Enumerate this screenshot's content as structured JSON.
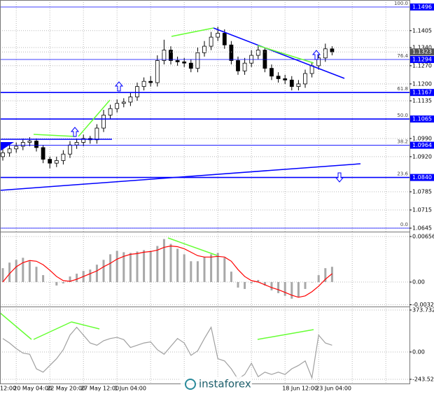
{
  "chart_data": [
    {
      "type": "candlestick",
      "categories": [
        "12:00",
        null,
        "20 May 04:00",
        null,
        null,
        null,
        null,
        "22 May 20:00",
        null,
        null,
        null,
        null,
        "27 May 12:00",
        null,
        null,
        null,
        null,
        "1 Jun 04:00",
        null,
        null,
        null,
        null,
        null,
        null,
        null,
        null,
        null,
        null,
        null,
        null,
        null,
        null,
        null,
        null,
        null,
        null,
        null,
        null,
        null,
        null,
        null,
        null,
        "18 Jun 12:00",
        null,
        null,
        null,
        null,
        "23 Jun 04:00",
        null,
        null
      ],
      "open": [
        1.092,
        1.0935,
        1.095,
        1.096,
        1.0975,
        1.098,
        1.0955,
        1.091,
        1.0895,
        1.0905,
        1.093,
        1.0965,
        1.0975,
        1.099,
        1.0985,
        1.103,
        1.108,
        1.1105,
        1.1125,
        1.113,
        1.115,
        1.119,
        1.121,
        1.1205,
        1.129,
        1.133,
        1.129,
        1.1285,
        1.128,
        1.126,
        1.132,
        1.1345,
        1.138,
        1.1395,
        1.135,
        1.129,
        1.125,
        1.128,
        1.131,
        1.133,
        1.126,
        1.123,
        1.122,
        1.1215,
        1.119,
        1.12,
        1.124,
        1.127,
        1.13,
        1.1335
      ],
      "high": [
        1.095,
        1.0965,
        1.0975,
        1.099,
        1.0995,
        1.099,
        1.0965,
        1.092,
        1.092,
        1.0945,
        1.098,
        1.099,
        1.1005,
        1.1,
        1.1045,
        1.11,
        1.112,
        1.114,
        1.1145,
        1.1165,
        1.1205,
        1.1225,
        1.123,
        1.131,
        1.137,
        1.1345,
        1.1305,
        1.13,
        1.1295,
        1.134,
        1.1365,
        1.14,
        1.142,
        1.141,
        1.1365,
        1.1305,
        1.13,
        1.133,
        1.135,
        1.134,
        1.1275,
        1.1245,
        1.1235,
        1.123,
        1.1215,
        1.1255,
        1.1285,
        1.1315,
        1.1355,
        1.1345
      ],
      "low": [
        1.0905,
        1.092,
        1.0935,
        1.0945,
        1.096,
        1.094,
        1.0895,
        1.0875,
        1.088,
        1.089,
        1.0915,
        1.095,
        1.096,
        1.097,
        1.097,
        1.1015,
        1.1065,
        1.109,
        1.111,
        1.1115,
        1.1135,
        1.1175,
        1.119,
        1.119,
        1.1275,
        1.1275,
        1.127,
        1.1265,
        1.1245,
        1.1245,
        1.1305,
        1.133,
        1.1365,
        1.1335,
        1.1275,
        1.1235,
        1.1235,
        1.1265,
        1.1295,
        1.1245,
        1.1215,
        1.1205,
        1.12,
        1.1175,
        1.1175,
        1.1185,
        1.1225,
        1.1255,
        1.1285,
        1.131
      ],
      "close": [
        1.0935,
        1.095,
        1.096,
        1.0975,
        1.098,
        1.0955,
        1.091,
        1.0895,
        1.0905,
        1.093,
        1.0965,
        1.0975,
        1.099,
        1.0985,
        1.103,
        1.108,
        1.1105,
        1.1125,
        1.113,
        1.115,
        1.119,
        1.121,
        1.1205,
        1.129,
        1.133,
        1.129,
        1.1285,
        1.128,
        1.126,
        1.132,
        1.1345,
        1.138,
        1.1395,
        1.135,
        1.129,
        1.125,
        1.128,
        1.131,
        1.133,
        1.126,
        1.123,
        1.122,
        1.1215,
        1.119,
        1.12,
        1.124,
        1.127,
        1.13,
        1.1335,
        1.1323
      ],
      "ylim": [
        1.0645,
        1.1496
      ],
      "yticks": [
        1.1405,
        {
          "value": 1.134,
          "label": "1.1340"
        },
        {
          "value": 1.127,
          "label": "1.1270"
        },
        {
          "value": 1.12,
          "label": "1.1200"
        },
        1.1135,
        {
          "value": 1.099,
          "label": "1.0990"
        },
        {
          "value": 1.092,
          "label": "1.0920"
        },
        1.0785,
        1.0715,
        1.0645
      ],
      "fib_levels": [
        "100.0",
        "76.4",
        "61.8",
        "50.0",
        "38.2",
        "23.6",
        "0.0"
      ],
      "fib_prices": [
        1.1496,
        1.1294,
        1.1167,
        1.1065,
        1.0964,
        1.084,
        1.0645
      ],
      "fib_price_labels": [
        "1.1496",
        "1.1294",
        "1.1167",
        "1.1065",
        "1.0964",
        "1.0840",
        null
      ],
      "fib_thick": [
        false,
        false,
        true,
        true,
        false,
        true,
        false
      ],
      "fib_color": "#0000ff",
      "last_price": 1.1323,
      "grid": true
    },
    {
      "type": "bar",
      "series": [
        {
          "color": "#a8a8a8",
          "values": [
            0.002,
            0.0028,
            0.0032,
            0.0035,
            0.003,
            0.0022,
            0.001,
            0.0,
            -0.0005,
            -0.0002,
            0.0008,
            0.0012,
            0.0016,
            0.0018,
            0.0025,
            0.0032,
            0.004,
            0.0045,
            0.0043,
            0.0042,
            0.0044,
            0.0046,
            0.0045,
            0.0052,
            0.0062,
            0.0055,
            0.0048,
            0.004,
            0.003,
            0.003,
            0.0036,
            0.004,
            0.0042,
            0.0035,
            0.0015,
            -0.0008,
            -0.001,
            -0.0002,
            0.0003,
            -0.0005,
            -0.0012,
            -0.0016,
            -0.002,
            -0.0024,
            -0.0022,
            -0.001,
            0.0,
            0.001,
            0.002,
            0.0022
          ]
        },
        {
          "color": "#ff0000",
          "type": "line",
          "values": [
            0.0,
            0.0012,
            0.0022,
            0.0028,
            0.0031,
            0.003,
            0.0025,
            0.0017,
            0.0008,
            0.0002,
            0.0001,
            0.0004,
            0.0008,
            0.0012,
            0.0016,
            0.0022,
            0.0027,
            0.0033,
            0.0037,
            0.004,
            0.0041,
            0.0043,
            0.0044,
            0.0046,
            0.005,
            0.0052,
            0.0051,
            0.0048,
            0.0043,
            0.0038,
            0.0036,
            0.0036,
            0.0037,
            0.0036,
            0.003,
            0.0018,
            0.0008,
            0.0002,
            0.0,
            -0.0004,
            -0.0008,
            -0.0011,
            -0.0015,
            -0.0019,
            -0.0022,
            -0.002,
            -0.0014,
            -0.0006,
            0.0004,
            0.0012
          ]
        }
      ],
      "ylim": [
        -0.00328,
        0.00656
      ],
      "yticks": [
        0.00656,
        {
          "value": 0,
          "label": "0.00"
        },
        -0.00328
      ],
      "grid": true
    },
    {
      "type": "line",
      "series": [
        {
          "color": "#a0a0a0",
          "values": [
            120,
            80,
            30,
            -10,
            -20,
            -150,
            -180,
            -120,
            -60,
            20,
            150,
            220,
            150,
            80,
            60,
            100,
            120,
            130,
            110,
            40,
            60,
            80,
            90,
            20,
            -20,
            50,
            120,
            80,
            -30,
            10,
            120,
            220,
            -60,
            -80,
            -150,
            -243,
            -200,
            -100,
            -220,
            -180,
            -200,
            -180,
            -200,
            -150,
            -120,
            -80,
            -230,
            150,
            80,
            60
          ]
        }
      ],
      "ylim": [
        -243.527,
        373.7321
      ],
      "yticks": [
        373.7321,
        {
          "value": 0,
          "label": "0.00"
        },
        {
          "value": -243.527,
          "label": "-243.5270"
        }
      ],
      "grid": true
    }
  ],
  "watermark": "instaforex"
}
